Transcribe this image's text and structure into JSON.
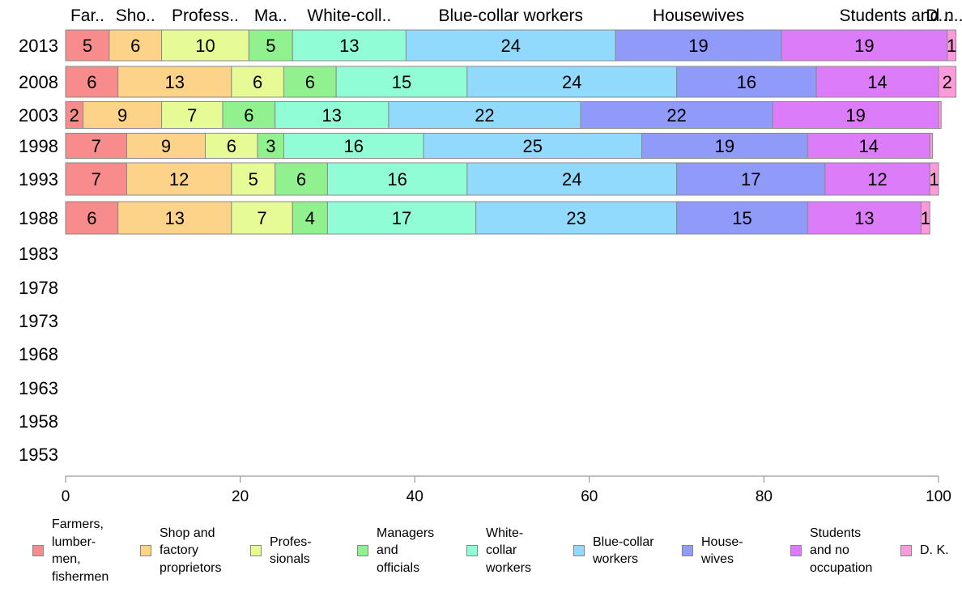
{
  "chart_data": {
    "type": "bar",
    "orientation": "horizontal",
    "stacked": true,
    "categories": [
      "2013",
      "2008",
      "2003",
      "1998",
      "1993",
      "1988",
      "1983",
      "1978",
      "1973",
      "1968",
      "1963",
      "1958",
      "1953"
    ],
    "series": [
      {
        "name": "Farmers, lumbermen, fishermen",
        "header": "Far..",
        "legend": "Farmers,\nlumber-\nmen,\nfishermen",
        "color": "#f88b8b",
        "values": [
          5,
          6,
          2,
          7,
          7,
          6,
          null,
          null,
          null,
          null,
          null,
          null,
          null
        ]
      },
      {
        "name": "Shop and factory proprietors",
        "header": "Sho..",
        "legend": "Shop and\nfactory\nproprietors",
        "color": "#fdd38a",
        "values": [
          6,
          13,
          9,
          9,
          12,
          13,
          null,
          null,
          null,
          null,
          null,
          null,
          null
        ]
      },
      {
        "name": "Professionals",
        "header": "Profess..",
        "legend": "Profes-\nsionals",
        "color": "#e6fb96",
        "values": [
          10,
          6,
          7,
          6,
          5,
          7,
          null,
          null,
          null,
          null,
          null,
          null,
          null
        ]
      },
      {
        "name": "Managers and officials",
        "header": "Ma..",
        "legend": "Managers\nand\nofficials",
        "color": "#91f18f",
        "values": [
          5,
          6,
          6,
          3,
          6,
          4,
          null,
          null,
          null,
          null,
          null,
          null,
          null
        ]
      },
      {
        "name": "White-collar workers",
        "header": "White-coll..",
        "legend": "White-\ncollar\nworkers",
        "color": "#91fdd7",
        "values": [
          13,
          15,
          13,
          16,
          16,
          17,
          null,
          null,
          null,
          null,
          null,
          null,
          null
        ]
      },
      {
        "name": "Blue-collar workers",
        "header": "Blue-collar workers",
        "legend": "Blue-collar\nworkers",
        "color": "#91dafd",
        "values": [
          24,
          24,
          22,
          25,
          24,
          23,
          null,
          null,
          null,
          null,
          null,
          null,
          null
        ]
      },
      {
        "name": "Housewives",
        "header": "Housewives",
        "legend": "House-\nwives",
        "color": "#8f9af9",
        "values": [
          19,
          16,
          22,
          19,
          17,
          15,
          null,
          null,
          null,
          null,
          null,
          null,
          null
        ]
      },
      {
        "name": "Students and no occupation",
        "header": "Students and n..",
        "legend": "Students\nand no\noccupation",
        "color": "#dc7cf8",
        "values": [
          19,
          14,
          19,
          14,
          12,
          13,
          null,
          null,
          null,
          null,
          null,
          null,
          null
        ]
      },
      {
        "name": "D. K.",
        "header": "D...",
        "legend": "D. K.",
        "color": "#fd9ada",
        "values": [
          1,
          2,
          0.3,
          0.3,
          1,
          1,
          null,
          null,
          null,
          null,
          null,
          null,
          null
        ]
      }
    ],
    "value_labels": [
      [
        "5",
        "6",
        "10",
        "5",
        "13",
        "24",
        "19",
        "19",
        "1"
      ],
      [
        "6",
        "13",
        "6",
        "6",
        "15",
        "24",
        "16",
        "14",
        "2"
      ],
      [
        "2",
        "9",
        "7",
        "6",
        "13",
        "22",
        "22",
        "19",
        ""
      ],
      [
        "7",
        "9",
        "6",
        "3",
        "16",
        "25",
        "19",
        "14",
        ""
      ],
      [
        "7",
        "12",
        "5",
        "6",
        "16",
        "24",
        "17",
        "12",
        "1"
      ],
      [
        "6",
        "13",
        "7",
        "4",
        "17",
        "23",
        "15",
        "13",
        "1"
      ]
    ],
    "xlim": [
      0,
      100
    ],
    "xticks": [
      0,
      20,
      40,
      60,
      80,
      100
    ],
    "grid": false,
    "legend_position": "bottom"
  }
}
